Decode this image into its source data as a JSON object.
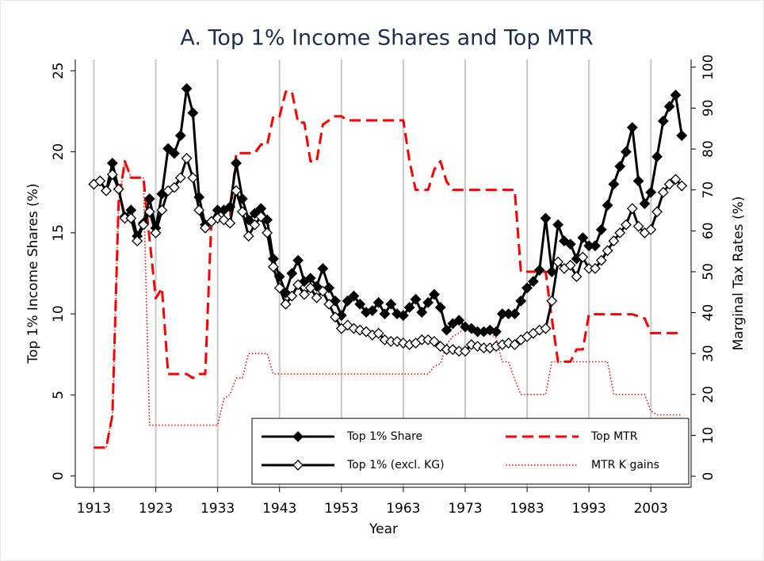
{
  "chart_data": {
    "type": "line",
    "title": "A. Top 1% Income Shares and Top MTR",
    "x_label": "Year",
    "y_label": "Top 1% Income Shares (%)",
    "y2_label": "Marginal Tax Rates (%)",
    "x": [
      1913,
      1914,
      1915,
      1916,
      1917,
      1918,
      1919,
      1920,
      1921,
      1922,
      1923,
      1924,
      1925,
      1926,
      1927,
      1928,
      1929,
      1930,
      1931,
      1932,
      1933,
      1934,
      1935,
      1936,
      1937,
      1938,
      1939,
      1940,
      1941,
      1942,
      1943,
      1944,
      1945,
      1946,
      1947,
      1948,
      1949,
      1950,
      1951,
      1952,
      1953,
      1954,
      1955,
      1956,
      1957,
      1958,
      1959,
      1960,
      1961,
      1962,
      1963,
      1964,
      1965,
      1966,
      1967,
      1968,
      1969,
      1970,
      1971,
      1972,
      1973,
      1974,
      1975,
      1976,
      1977,
      1978,
      1979,
      1980,
      1981,
      1982,
      1983,
      1984,
      1985,
      1986,
      1987,
      1988,
      1989,
      1990,
      1991,
      1992,
      1993,
      1994,
      1995,
      1996,
      1997,
      1998,
      1999,
      2000,
      2001,
      2002,
      2003,
      2004,
      2005,
      2006,
      2007,
      2008
    ],
    "series": [
      {
        "name": "Top 1% Share",
        "color": "#000000",
        "dash": "solid",
        "marker": "filled-diamond",
        "axis": "y",
        "values": [
          18.0,
          18.2,
          17.6,
          19.3,
          17.7,
          16.0,
          16.4,
          14.8,
          15.6,
          17.1,
          15.3,
          17.4,
          20.2,
          19.9,
          21.0,
          23.9,
          22.4,
          17.2,
          15.5,
          15.7,
          16.4,
          16.4,
          16.6,
          19.3,
          17.1,
          15.8,
          16.2,
          16.5,
          15.8,
          13.4,
          12.3,
          11.3,
          12.5,
          13.3,
          12.0,
          12.2,
          11.7,
          12.8,
          11.6,
          10.8,
          9.9,
          10.8,
          11.1,
          10.6,
          10.1,
          10.2,
          10.7,
          10.0,
          10.6,
          10.0,
          9.9,
          10.4,
          10.9,
          10.1,
          10.7,
          11.2,
          10.4,
          9.0,
          9.4,
          9.6,
          9.2,
          9.1,
          8.9,
          8.9,
          9.0,
          8.9,
          10.0,
          10.0,
          10.0,
          10.8,
          11.6,
          12.0,
          12.7,
          15.9,
          12.6,
          15.5,
          14.5,
          14.3,
          13.4,
          14.7,
          14.2,
          14.2,
          15.2,
          16.7,
          18.0,
          19.1,
          20.0,
          21.5,
          18.2,
          16.8,
          17.5,
          19.7,
          21.9,
          22.8,
          23.5,
          21.0
        ]
      },
      {
        "name": "Top 1% (excl. KG)",
        "color": "#000000",
        "dash": "solid",
        "marker": "hollow-diamond",
        "axis": "y",
        "values": [
          18.0,
          18.2,
          17.6,
          18.6,
          17.7,
          15.9,
          15.9,
          14.5,
          15.5,
          16.3,
          15.0,
          16.4,
          17.6,
          17.8,
          18.4,
          19.6,
          18.4,
          16.4,
          15.3,
          15.7,
          15.9,
          15.8,
          15.6,
          17.6,
          16.3,
          14.8,
          15.5,
          16.0,
          15.0,
          12.9,
          11.6,
          10.6,
          11.1,
          11.8,
          11.2,
          11.6,
          11.0,
          11.4,
          10.6,
          9.8,
          9.1,
          9.3,
          9.1,
          9.0,
          8.9,
          8.7,
          8.8,
          8.4,
          8.3,
          8.3,
          8.2,
          8.1,
          8.2,
          8.4,
          8.4,
          8.3,
          8.0,
          7.8,
          7.8,
          7.7,
          7.7,
          8.1,
          8.0,
          7.9,
          7.9,
          8.0,
          8.1,
          8.2,
          8.1,
          8.4,
          8.6,
          8.8,
          9.0,
          9.1,
          10.8,
          13.2,
          12.8,
          13.0,
          12.3,
          13.5,
          12.8,
          12.8,
          13.3,
          13.9,
          14.5,
          15.0,
          15.5,
          16.5,
          15.4,
          15.0,
          15.2,
          16.3,
          17.5,
          18.0,
          18.3,
          17.9
        ]
      },
      {
        "name": "Top MTR",
        "color": "#ff0000",
        "dash": "dash",
        "marker": "none",
        "axis": "y2",
        "values": [
          7,
          7,
          7,
          15,
          67,
          77,
          73,
          73,
          73,
          58,
          43.5,
          46,
          25,
          25,
          25,
          25,
          24,
          25,
          25,
          63,
          63,
          63,
          63,
          79,
          79,
          79,
          79,
          81.1,
          81,
          88,
          88,
          94,
          94,
          86.45,
          86.45,
          77,
          77,
          86,
          87,
          88,
          88,
          87,
          87,
          87,
          87,
          87,
          87,
          87,
          87,
          87,
          87,
          77,
          70,
          70,
          70,
          75,
          77,
          72,
          70,
          70,
          70,
          70,
          70,
          70,
          70,
          70,
          70,
          70,
          70,
          50,
          50,
          50,
          50,
          50,
          38.5,
          28,
          28,
          28,
          31,
          31,
          39.6,
          39.6,
          39.6,
          39.6,
          39.6,
          39.6,
          39.6,
          39.6,
          39.1,
          38.6,
          35,
          35,
          35,
          35,
          35,
          35
        ]
      },
      {
        "name": "MTR K gains",
        "color": "#ff0000",
        "dash": "dot",
        "marker": "none",
        "axis": "y2",
        "values": [
          7,
          7,
          7,
          15,
          67,
          77,
          73,
          73,
          73,
          12.5,
          12.5,
          12.5,
          12.5,
          12.5,
          12.5,
          12.5,
          12.5,
          12.5,
          12.5,
          12.5,
          12.5,
          18.9,
          20,
          24,
          24,
          30,
          30,
          30,
          30,
          25,
          25,
          25,
          25,
          25,
          25,
          25,
          25,
          25,
          25,
          25,
          25,
          25,
          25,
          25,
          25,
          25,
          25,
          25,
          25,
          25,
          25,
          25,
          25,
          25,
          25,
          26.9,
          27.5,
          32.2,
          34.2,
          35,
          36.5,
          35,
          35,
          35,
          35,
          33.8,
          28,
          28,
          23.7,
          20,
          20,
          20,
          20,
          20,
          28,
          28,
          28,
          28,
          28,
          28,
          28,
          28,
          28,
          28,
          20,
          20,
          20,
          20,
          20,
          20,
          16,
          15,
          15,
          15,
          15,
          15
        ]
      }
    ],
    "xlim": [
      1910,
      2009.5
    ],
    "xticks": [
      1913,
      1923,
      1933,
      1943,
      1953,
      1963,
      1973,
      1983,
      1993,
      2003
    ],
    "ylim": [
      -0.7,
      25.7
    ],
    "yticks": [
      0,
      5,
      10,
      15,
      20,
      25
    ],
    "y2lim": [
      -2.7,
      101.9
    ],
    "y2ticks": [
      0,
      10,
      20,
      30,
      40,
      50,
      60,
      70,
      80,
      90,
      100
    ],
    "grid": "x",
    "legend_position": "bottom right"
  }
}
